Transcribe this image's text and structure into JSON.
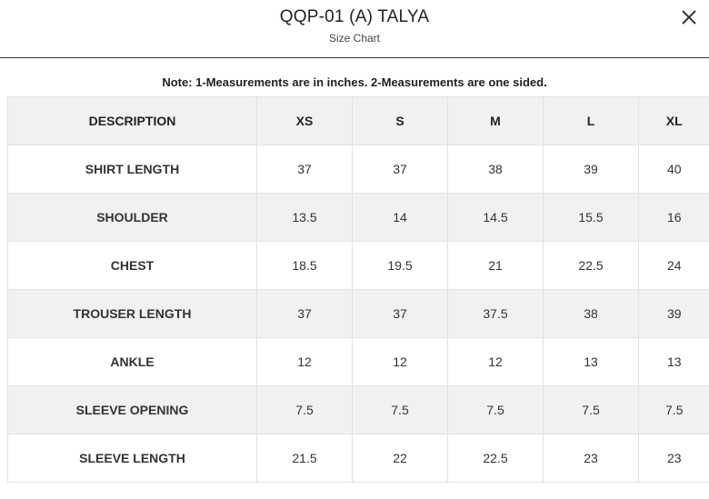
{
  "header": {
    "title": "QQP-01 (A) TALYA",
    "subtitle": "Size Chart",
    "close_icon": "close-icon"
  },
  "note": "Note: 1-Measurements are in inches. 2-Measurements are one sided.",
  "table": {
    "columns": [
      "DESCRIPTION",
      "XS",
      "S",
      "M",
      "L",
      "XL"
    ],
    "rows": [
      {
        "label": "SHIRT LENGTH",
        "values": [
          "37",
          "37",
          "38",
          "39",
          "40"
        ]
      },
      {
        "label": "SHOULDER",
        "values": [
          "13.5",
          "14",
          "14.5",
          "15.5",
          "16"
        ]
      },
      {
        "label": "CHEST",
        "values": [
          "18.5",
          "19.5",
          "21",
          "22.5",
          "24"
        ]
      },
      {
        "label": "TROUSER LENGTH",
        "values": [
          "37",
          "37",
          "37.5",
          "38",
          "39"
        ]
      },
      {
        "label": "ANKLE",
        "values": [
          "12",
          "12",
          "12",
          "13",
          "13"
        ]
      },
      {
        "label": "SLEEVE OPENING",
        "values": [
          "7.5",
          "7.5",
          "7.5",
          "7.5",
          "7.5"
        ]
      },
      {
        "label": "SLEEVE LENGTH",
        "values": [
          "21.5",
          "22",
          "22.5",
          "23",
          "23"
        ]
      }
    ]
  },
  "colors": {
    "shaded_row": "#f1f1f1",
    "border": "#e2e2e2",
    "text": "#222222"
  }
}
